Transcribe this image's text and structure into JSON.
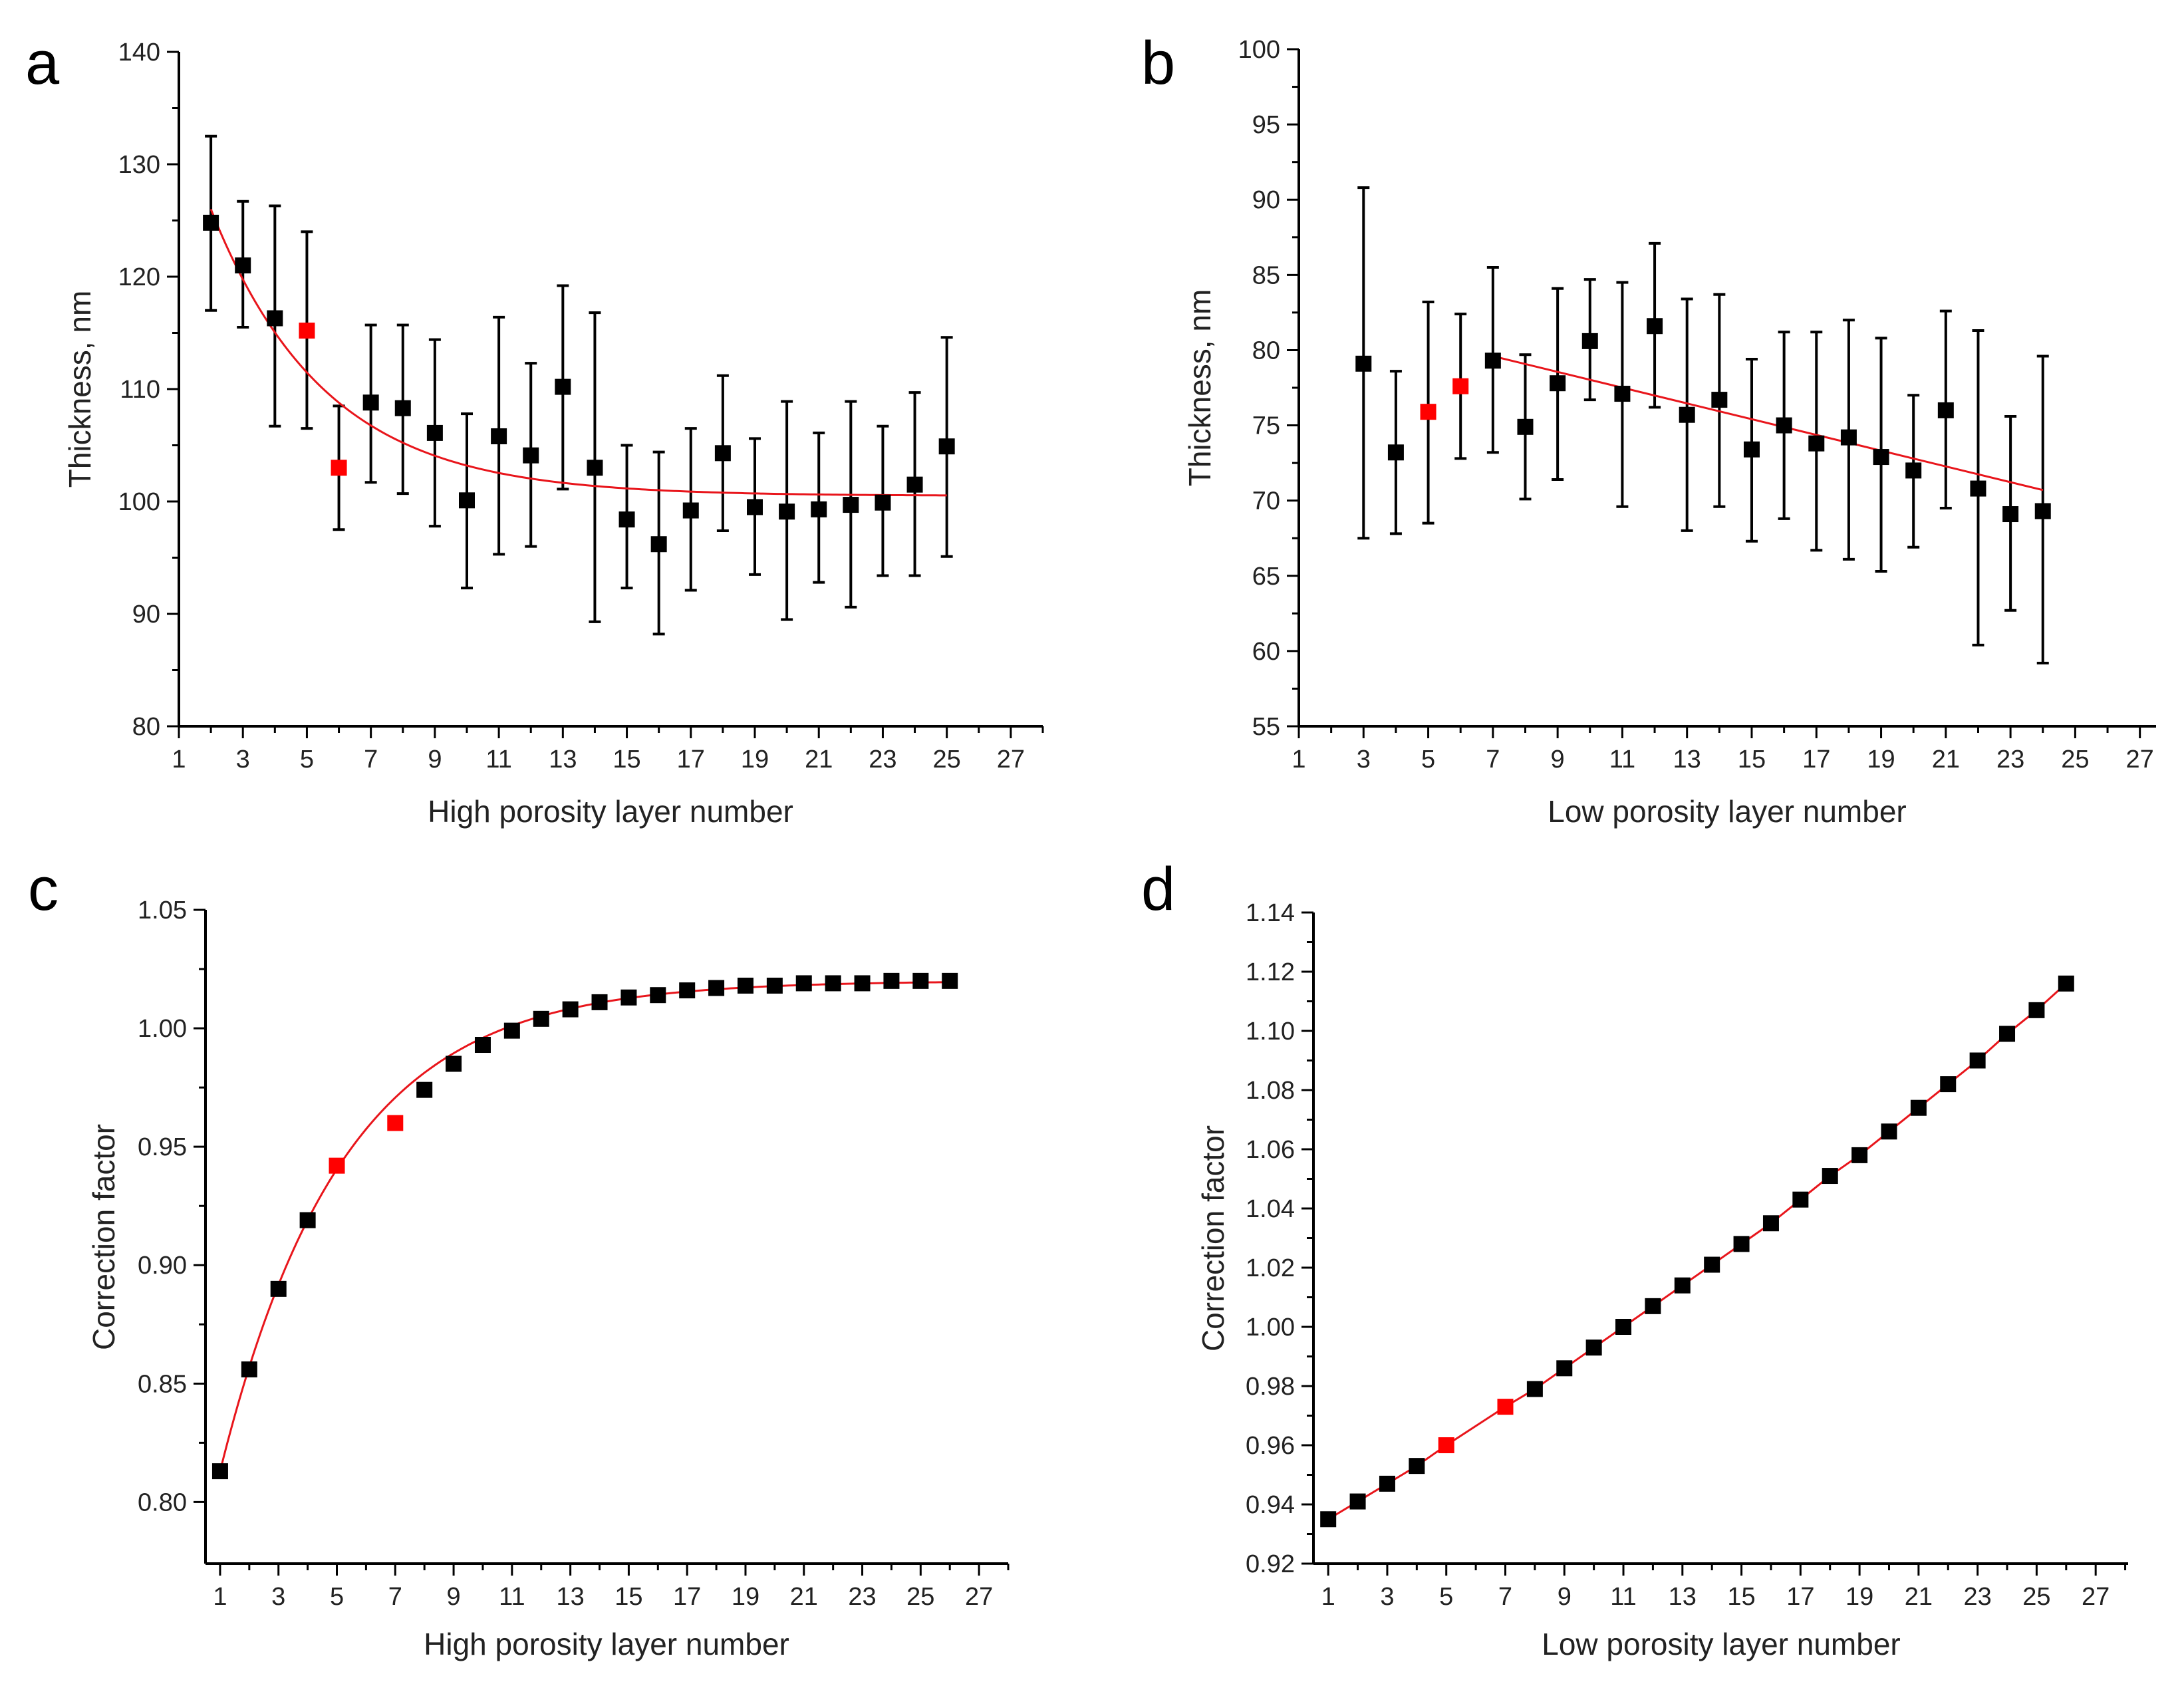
{
  "colors": {
    "marker": "#000000",
    "highlight": "#ff0000",
    "fit": "#e8151b",
    "axis": "#000000"
  },
  "chart_data": [
    {
      "panel": "a",
      "type": "scatter",
      "xlabel": "High porosity layer number",
      "ylabel": "Thickness, nm",
      "xlim": [
        1,
        28
      ],
      "ylim": [
        80,
        140
      ],
      "xticks": [
        1,
        3,
        5,
        7,
        9,
        11,
        13,
        15,
        17,
        19,
        21,
        23,
        25,
        27
      ],
      "yticks": [
        80,
        90,
        100,
        110,
        120,
        130,
        140
      ],
      "x": [
        2,
        3,
        4,
        5,
        6,
        7,
        8,
        9,
        10,
        11,
        12,
        13,
        14,
        15,
        16,
        17,
        18,
        19,
        20,
        21,
        22,
        23,
        24,
        25
      ],
      "y": [
        124.8,
        121.0,
        116.3,
        115.2,
        103.0,
        108.8,
        108.3,
        106.1,
        100.1,
        105.8,
        104.1,
        110.2,
        103.0,
        98.4,
        96.2,
        99.2,
        104.3,
        99.5,
        99.1,
        99.3,
        99.7,
        99.9,
        101.5,
        104.9
      ],
      "y_upper": [
        132.5,
        126.7,
        126.3,
        124.0,
        108.5,
        115.7,
        115.7,
        114.4,
        107.8,
        116.4,
        112.3,
        119.2,
        116.8,
        105.0,
        104.4,
        106.5,
        111.2,
        105.6,
        108.9,
        106.1,
        108.9,
        106.7,
        109.7,
        114.6
      ],
      "y_lower": [
        117.0,
        115.5,
        106.7,
        106.5,
        97.5,
        101.7,
        100.7,
        97.8,
        92.3,
        95.3,
        96.0,
        101.1,
        89.3,
        92.3,
        88.2,
        92.1,
        97.4,
        93.5,
        89.5,
        92.8,
        90.6,
        93.4,
        93.4,
        95.1
      ],
      "highlighted_x": [
        5,
        6
      ],
      "fit": {
        "type": "exp_decay",
        "y0": 100.5,
        "A": 25.5,
        "x0": 2,
        "t": 3.56,
        "x_range": [
          2,
          25
        ]
      }
    },
    {
      "panel": "b",
      "type": "scatter",
      "xlabel": "Low porosity layer number",
      "ylabel": "Thickness, nm",
      "xlim": [
        1,
        27.5
      ],
      "ylim": [
        55,
        100
      ],
      "xticks": [
        1,
        3,
        5,
        7,
        9,
        11,
        13,
        15,
        17,
        19,
        21,
        23,
        25,
        27
      ],
      "yticks": [
        55,
        60,
        65,
        70,
        75,
        80,
        85,
        90,
        95,
        100
      ],
      "x": [
        3,
        4,
        5,
        6,
        7,
        8,
        9,
        10,
        11,
        12,
        13,
        14,
        15,
        16,
        17,
        18,
        19,
        20,
        21,
        22,
        23,
        24
      ],
      "y": [
        79.1,
        73.2,
        75.9,
        77.6,
        79.3,
        74.9,
        77.8,
        80.6,
        77.1,
        81.6,
        75.7,
        76.7,
        73.4,
        75.0,
        73.8,
        74.2,
        72.9,
        72.0,
        76.0,
        70.8,
        69.1,
        69.3
      ],
      "y_upper": [
        90.8,
        78.6,
        83.2,
        82.4,
        85.5,
        79.7,
        84.1,
        84.7,
        84.5,
        87.1,
        83.4,
        83.7,
        79.4,
        81.2,
        81.2,
        82.0,
        80.8,
        77.0,
        82.6,
        81.3,
        75.6,
        79.6
      ],
      "y_lower": [
        67.5,
        67.8,
        68.5,
        72.8,
        73.2,
        70.1,
        71.4,
        76.7,
        69.6,
        76.2,
        68.0,
        69.6,
        67.3,
        68.8,
        66.7,
        66.1,
        65.3,
        66.9,
        69.5,
        60.4,
        62.7,
        59.2
      ],
      "highlighted_x": [
        5,
        6
      ],
      "fit": {
        "type": "linear",
        "points": [
          [
            7,
            79.6
          ],
          [
            24,
            70.7
          ]
        ]
      }
    },
    {
      "panel": "c",
      "type": "scatter",
      "xlabel": "High porosity layer number",
      "ylabel": "Correction factor",
      "xlim": [
        0.5,
        28
      ],
      "ylim": [
        0.774,
        1.05
      ],
      "xticks": [
        1,
        3,
        5,
        7,
        9,
        11,
        13,
        15,
        17,
        19,
        21,
        23,
        25,
        27
      ],
      "yticks": [
        0.8,
        0.85,
        0.9,
        0.95,
        1.0,
        1.05
      ],
      "x": [
        1,
        2,
        3,
        4,
        5,
        7,
        8,
        9,
        10,
        11,
        12,
        13,
        14,
        15,
        16,
        17,
        18,
        19,
        20,
        21,
        22,
        23,
        24,
        25,
        26
      ],
      "y": [
        0.813,
        0.856,
        0.89,
        0.919,
        0.942,
        0.96,
        0.974,
        0.985,
        0.993,
        0.999,
        1.004,
        1.008,
        1.011,
        1.013,
        1.014,
        1.016,
        1.017,
        1.018,
        1.018,
        1.019,
        1.019,
        1.019,
        1.02,
        1.02,
        1.02
      ],
      "highlighted_x": [
        5,
        7
      ],
      "fit": {
        "type": "exp_rise",
        "y0": 1.02,
        "A": -0.207,
        "x0": 1,
        "t": 4.18,
        "x_range": [
          1,
          26
        ]
      }
    },
    {
      "panel": "d",
      "type": "scatter",
      "xlabel": "Low porosity layer number",
      "ylabel": "Correction factor",
      "xlim": [
        0.5,
        28.1
      ],
      "ylim": [
        0.92,
        1.14
      ],
      "xticks": [
        1,
        3,
        5,
        7,
        9,
        11,
        13,
        15,
        17,
        19,
        21,
        23,
        25,
        27
      ],
      "yticks": [
        0.92,
        0.94,
        0.96,
        0.98,
        1.0,
        1.02,
        1.04,
        1.06,
        1.08,
        1.1,
        1.12,
        1.14
      ],
      "x": [
        1,
        2,
        3,
        4,
        5,
        7,
        8,
        9,
        10,
        11,
        12,
        13,
        14,
        15,
        16,
        17,
        18,
        19,
        20,
        21,
        22,
        23,
        24,
        25,
        26
      ],
      "y": [
        0.935,
        0.941,
        0.947,
        0.953,
        0.96,
        0.973,
        0.979,
        0.986,
        0.993,
        1.0,
        1.007,
        1.014,
        1.021,
        1.028,
        1.035,
        1.043,
        1.051,
        1.058,
        1.066,
        1.074,
        1.082,
        1.09,
        1.099,
        1.107,
        1.116
      ],
      "highlighted_x": [
        5,
        7
      ],
      "fit": {
        "type": "through_points"
      }
    }
  ]
}
